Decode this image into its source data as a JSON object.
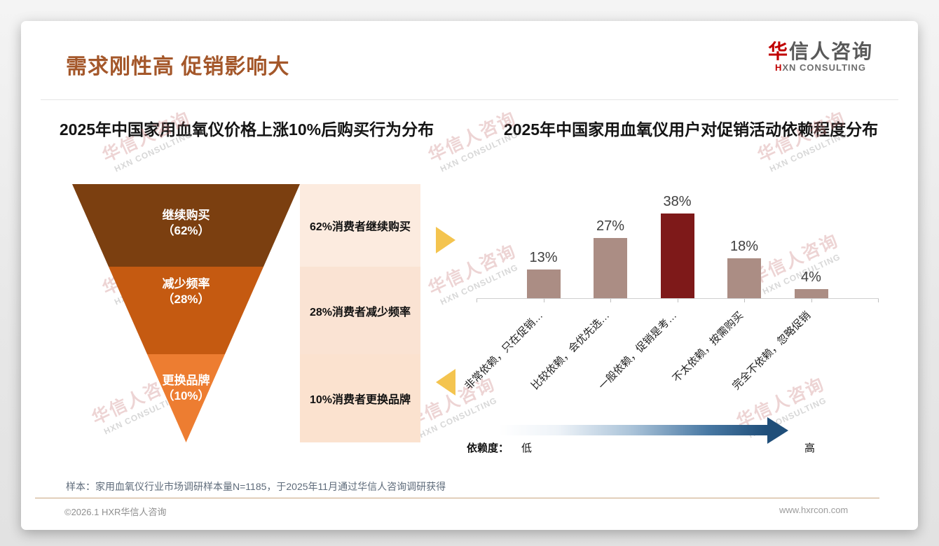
{
  "header": {
    "title": "需求刚性高 促销影响大",
    "logo": {
      "accent": "华",
      "name": "信人咨询",
      "tagline_accent": "H",
      "tagline": "XN CONSULTING"
    }
  },
  "watermark": {
    "line1": "华信人咨询",
    "line2": "HXN CONSULTING"
  },
  "chart_data": [
    {
      "type": "funnel",
      "title": "2025年中国家用血氧仪价格上涨10%后购买行为分布",
      "categories": [
        "继续购买",
        "减少频率",
        "更换品牌"
      ],
      "values": [
        62,
        28,
        10
      ],
      "pct_labels": [
        "（62%）",
        "（28%）",
        "（10%）"
      ],
      "colors": [
        "#7B3F10",
        "#C55A11",
        "#ED7D31"
      ],
      "annotations": [
        "62%消费者继续购买",
        "28%消费者减少频率",
        "10%消费者更换品牌"
      ],
      "annotation_bg": [
        "#FCEBDF",
        "#FAE3D3",
        "#FBE2CF"
      ],
      "legend_position": "none"
    },
    {
      "type": "bar",
      "title": "2025年中国家用血氧仪用户对促销活动依赖程度分布",
      "categories": [
        "非常依赖，只在促销…",
        "比较依赖，会优先选…",
        "一般依赖，促销是考…",
        "不太依赖，按需购买",
        "完全不依赖，忽略促销"
      ],
      "values": [
        13,
        27,
        38,
        18,
        4
      ],
      "value_labels": [
        "13%",
        "27%",
        "38%",
        "18%",
        "4%"
      ],
      "ylim": [
        0,
        40
      ],
      "bar_color": "#AB8D84",
      "highlight_index": 2,
      "highlight_color": "#7E1919",
      "grid": false,
      "legend": {
        "label": "依赖度：",
        "low": "低",
        "high": "高"
      },
      "gradient": {
        "from": "#FFFFFF",
        "to": "#1F4E79"
      }
    }
  ],
  "footer": {
    "note": "样本：家用血氧仪行业市场调研样本量N=1185，于2025年11月通过华信人咨询调研获得",
    "copyright": "©2026.1 HXR华信人咨询",
    "website": "www.hxrcon.com"
  }
}
